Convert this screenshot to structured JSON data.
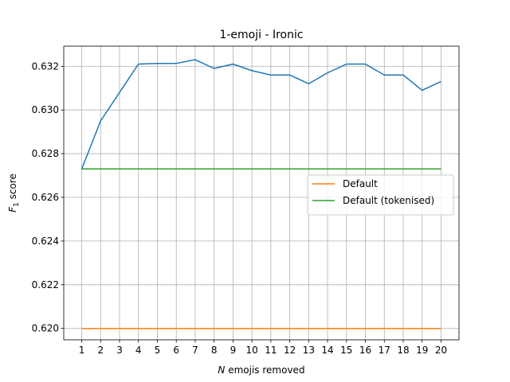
{
  "chart_data": {
    "type": "line",
    "title": "1-emoji - Ironic",
    "xlabel_italic": "N",
    "xlabel_rest": " emojis removed",
    "ylabel_main": "F",
    "ylabel_sub": "1",
    "ylabel_rest": " score",
    "x": [
      1,
      2,
      3,
      4,
      5,
      6,
      7,
      8,
      9,
      10,
      11,
      12,
      13,
      14,
      15,
      16,
      17,
      18,
      19,
      20
    ],
    "xlim": [
      0.05,
      20.95
    ],
    "ylim": [
      0.61948,
      0.63292
    ],
    "yticks": [
      0.62,
      0.622,
      0.624,
      0.626,
      0.628,
      0.63,
      0.632
    ],
    "ytick_labels": [
      "0.620",
      "0.622",
      "0.624",
      "0.626",
      "0.628",
      "0.630",
      "0.632"
    ],
    "xtick_labels": [
      "1",
      "2",
      "3",
      "4",
      "5",
      "6",
      "7",
      "8",
      "9",
      "10",
      "11",
      "12",
      "13",
      "14",
      "15",
      "16",
      "17",
      "18",
      "19",
      "20"
    ],
    "grid": true,
    "legend_placement": "center-right",
    "series": [
      {
        "color": "#1f77b4",
        "in_legend": false,
        "values": [
          0.6273,
          0.6295,
          0.6308,
          0.6321,
          0.63213,
          0.63213,
          0.6323,
          0.6319,
          0.6321,
          0.6318,
          0.6316,
          0.6316,
          0.6312,
          0.6317,
          0.6321,
          0.6321,
          0.6316,
          0.6316,
          0.6309,
          0.6313
        ]
      },
      {
        "name": "Default",
        "color": "#ff7f0e",
        "in_legend": true,
        "values": [
          0.62,
          0.62,
          0.62,
          0.62,
          0.62,
          0.62,
          0.62,
          0.62,
          0.62,
          0.62,
          0.62,
          0.62,
          0.62,
          0.62,
          0.62,
          0.62,
          0.62,
          0.62,
          0.62,
          0.62
        ]
      },
      {
        "name": "Default (tokenised)",
        "color": "#2ca02c",
        "in_legend": true,
        "values": [
          0.6273,
          0.6273,
          0.6273,
          0.6273,
          0.6273,
          0.6273,
          0.6273,
          0.6273,
          0.6273,
          0.6273,
          0.6273,
          0.6273,
          0.6273,
          0.6273,
          0.6273,
          0.6273,
          0.6273,
          0.6273,
          0.6273,
          0.6273
        ]
      }
    ]
  }
}
